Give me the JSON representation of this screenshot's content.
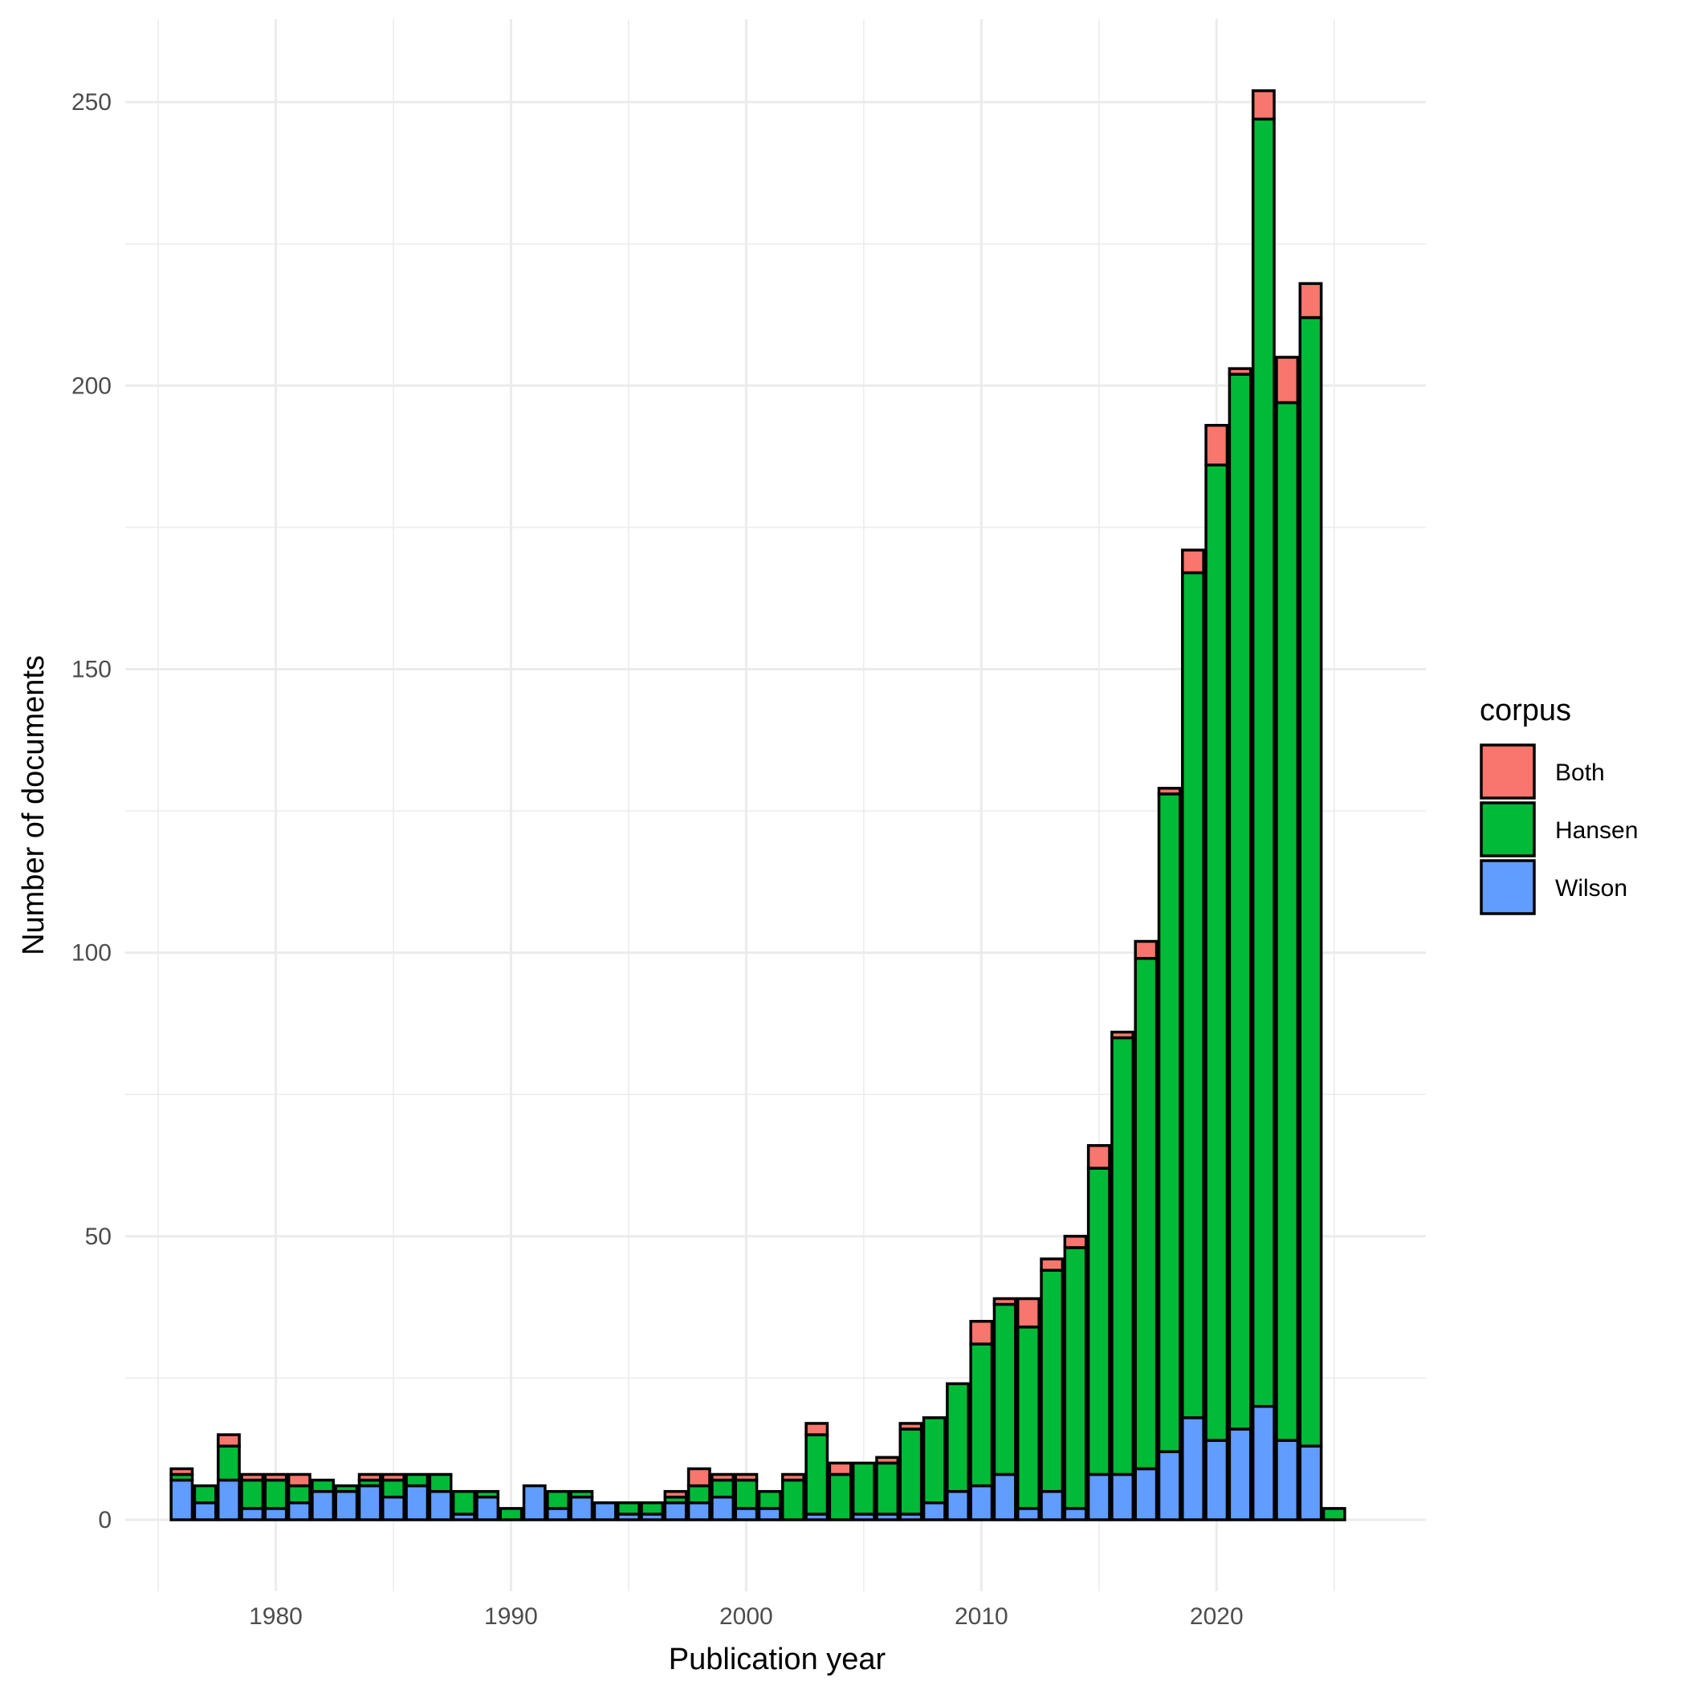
{
  "chart_data": {
    "type": "bar",
    "stacked": true,
    "title": "",
    "xlabel": "Publication year",
    "ylabel": "Number of documents",
    "xlim": [
      1973.6,
      2028.9
    ],
    "ylim": [
      -12.6,
      264.6
    ],
    "x_ticks": [
      1980,
      1990,
      2000,
      2010,
      2020
    ],
    "y_ticks": [
      0,
      50,
      100,
      150,
      200,
      250
    ],
    "grid": true,
    "legend": {
      "title": "corpus",
      "position": "right"
    },
    "colors": {
      "Both": "#F8766D",
      "Hansen": "#00BA38",
      "Wilson": "#619CFF",
      "outline": "#000000",
      "grid": "#ebebeb"
    },
    "x": [
      1976,
      1977,
      1978,
      1979,
      1980,
      1981,
      1982,
      1983,
      1984,
      1985,
      1986,
      1987,
      1988,
      1989,
      1990,
      1991,
      1992,
      1993,
      1994,
      1995,
      1996,
      1997,
      1998,
      1999,
      2000,
      2001,
      2002,
      2003,
      2004,
      2005,
      2006,
      2007,
      2008,
      2009,
      2010,
      2011,
      2012,
      2013,
      2014,
      2015,
      2016,
      2017,
      2018,
      2019,
      2020,
      2021,
      2022,
      2023,
      2024,
      2025
    ],
    "series": [
      {
        "name": "Wilson",
        "values": [
          7,
          3,
          7,
          2,
          2,
          3,
          5,
          5,
          6,
          4,
          6,
          5,
          1,
          4,
          0,
          6,
          2,
          4,
          3,
          1,
          1,
          3,
          3,
          4,
          2,
          2,
          0,
          1,
          0,
          1,
          1,
          1,
          3,
          5,
          6,
          8,
          2,
          5,
          2,
          8,
          8,
          9,
          12,
          18,
          14,
          16,
          20,
          14,
          13,
          0
        ]
      },
      {
        "name": "Hansen",
        "values": [
          1,
          3,
          6,
          5,
          5,
          3,
          2,
          1,
          1,
          3,
          2,
          3,
          4,
          1,
          2,
          0,
          3,
          1,
          0,
          2,
          2,
          1,
          3,
          3,
          5,
          3,
          7,
          14,
          8,
          9,
          9,
          15,
          15,
          19,
          25,
          30,
          32,
          39,
          46,
          54,
          77,
          90,
          116,
          149,
          172,
          186,
          227,
          183,
          199,
          2
        ]
      },
      {
        "name": "Both",
        "values": [
          1,
          0,
          2,
          1,
          1,
          2,
          0,
          0,
          1,
          1,
          0,
          0,
          0,
          0,
          0,
          0,
          0,
          0,
          0,
          0,
          0,
          1,
          3,
          1,
          1,
          0,
          1,
          2,
          2,
          0,
          1,
          1,
          0,
          0,
          4,
          1,
          5,
          2,
          2,
          4,
          1,
          3,
          1,
          4,
          7,
          1,
          5,
          8,
          6,
          0
        ]
      }
    ]
  }
}
